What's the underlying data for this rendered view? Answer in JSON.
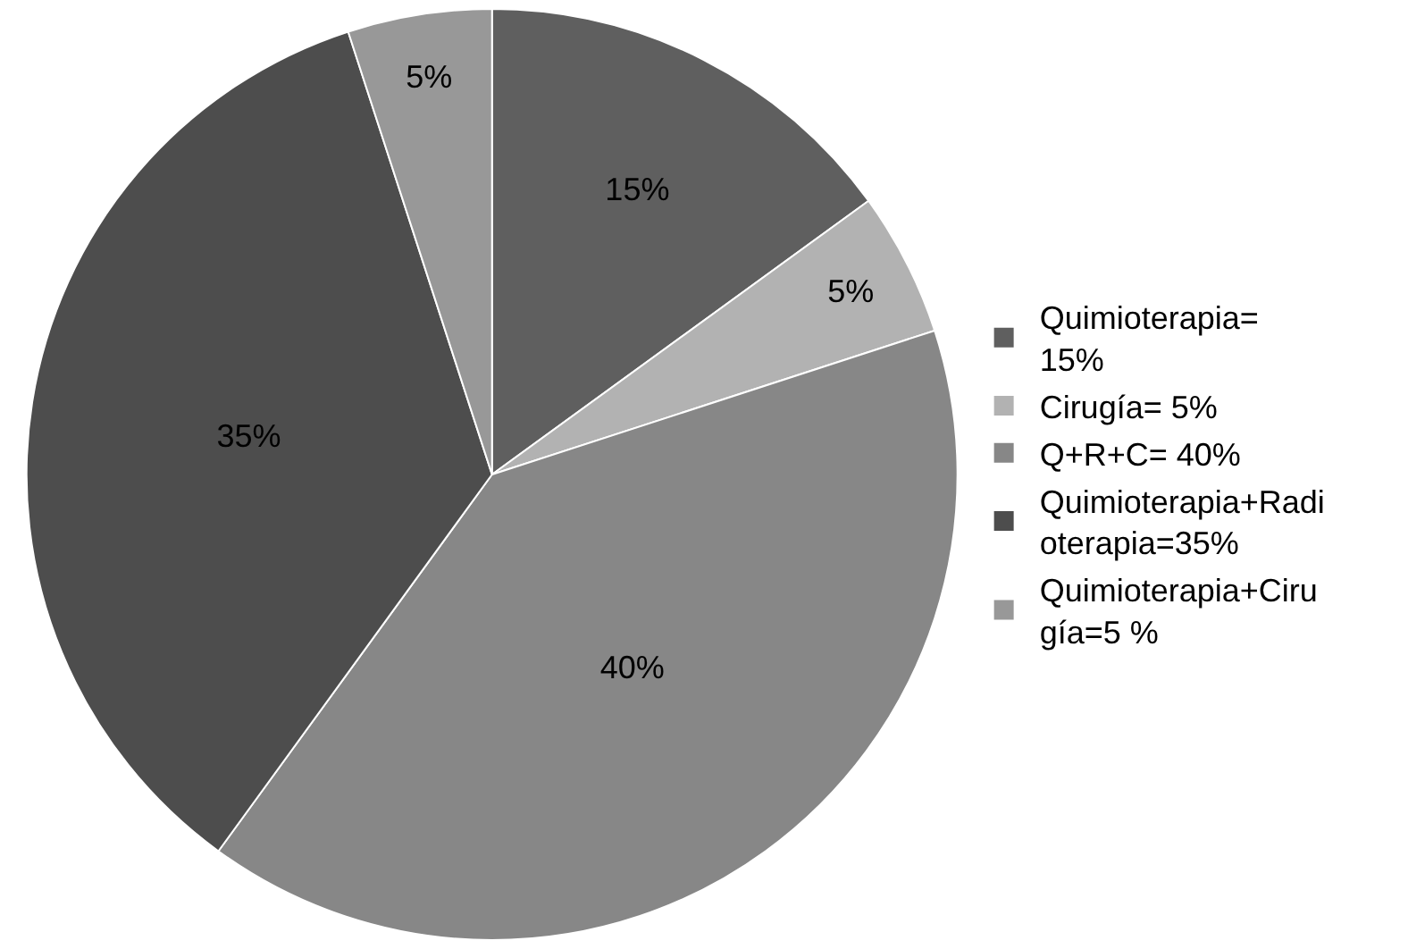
{
  "chart_data": {
    "type": "pie",
    "categories": [
      "Quimioterapia= 15%",
      "Cirugía= 5%",
      "Q+R+C= 40%",
      "Quimioterapia+Radioterapia=35%",
      "Quimioterapia+Cirugía=5 %"
    ],
    "values": [
      15,
      5,
      40,
      35,
      5
    ],
    "value_labels": [
      "15%",
      "5%",
      "40%",
      "35%",
      "5%"
    ],
    "colors": [
      "#5f5f5f",
      "#b2b2b2",
      "#878787",
      "#4d4d4d",
      "#989898"
    ],
    "legend": "right"
  }
}
